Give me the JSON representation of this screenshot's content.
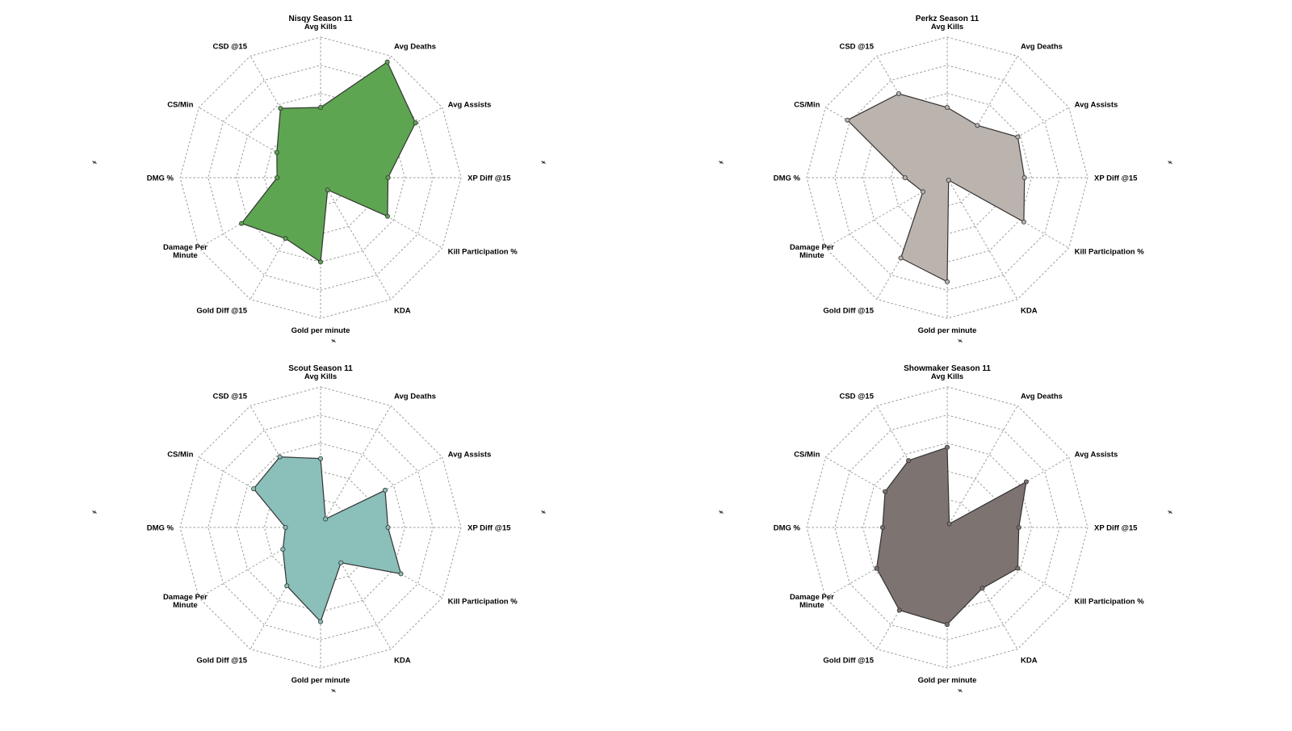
{
  "chart_data": [
    {
      "type": "radar",
      "title": "Nisqy Season 11",
      "color": "#5ea551",
      "axes": [
        "Avg Kills",
        "Avg Deaths",
        "Avg Assists",
        "XP Diff @15",
        "Kill Participation %",
        "KDA",
        "Gold per minute",
        "Gold Diff @15",
        "Damage Per Minute",
        "DMG %",
        "CS/Min",
        "CSD @15"
      ],
      "values": [
        0.5,
        0.95,
        0.78,
        0.48,
        0.55,
        0.1,
        0.6,
        0.5,
        0.65,
        0.31,
        0.36,
        0.57
      ],
      "rlim": [
        0,
        1
      ],
      "rings": 5,
      "grid": true
    },
    {
      "type": "radar",
      "title": "Perkz Season 11",
      "color": "#bbb3ae",
      "axes": [
        "Avg Kills",
        "Avg Deaths",
        "Avg Assists",
        "XP Diff @15",
        "Kill Participation %",
        "KDA",
        "Gold per minute",
        "Gold Diff @15",
        "Damage Per Minute",
        "DMG %",
        "CS/Min",
        "CSD @15"
      ],
      "values": [
        0.5,
        0.43,
        0.58,
        0.55,
        0.63,
        0.02,
        0.74,
        0.66,
        0.2,
        0.3,
        0.82,
        0.69
      ],
      "rlim": [
        0,
        1
      ],
      "rings": 5,
      "grid": true
    },
    {
      "type": "radar",
      "title": "Scout Season 11",
      "color": "#8bbfb9",
      "axes": [
        "Avg Kills",
        "Avg Deaths",
        "Avg Assists",
        "XP Diff @15",
        "Kill Participation %",
        "KDA",
        "Gold per minute",
        "Gold Diff @15",
        "Damage Per Minute",
        "DMG %",
        "CS/Min",
        "CSD @15"
      ],
      "values": [
        0.49,
        0.07,
        0.53,
        0.48,
        0.66,
        0.29,
        0.67,
        0.48,
        0.31,
        0.25,
        0.55,
        0.58
      ],
      "rlim": [
        0,
        1
      ],
      "rings": 5,
      "grid": true
    },
    {
      "type": "radar",
      "title": "Showmaker Season 11",
      "color": "#7d7370",
      "axes": [
        "Avg Kills",
        "Avg Deaths",
        "Avg Assists",
        "XP Diff @15",
        "Kill Participation %",
        "KDA",
        "Gold per minute",
        "Gold Diff @15",
        "Damage Per Minute",
        "DMG %",
        "CS/Min",
        "CSD @15"
      ],
      "values": [
        0.57,
        0.03,
        0.65,
        0.51,
        0.58,
        0.5,
        0.69,
        0.68,
        0.58,
        0.46,
        0.51,
        0.55
      ],
      "rlim": [
        0,
        1
      ],
      "rings": 5,
      "grid": true
    }
  ],
  "corner_marker_color": "#333333"
}
